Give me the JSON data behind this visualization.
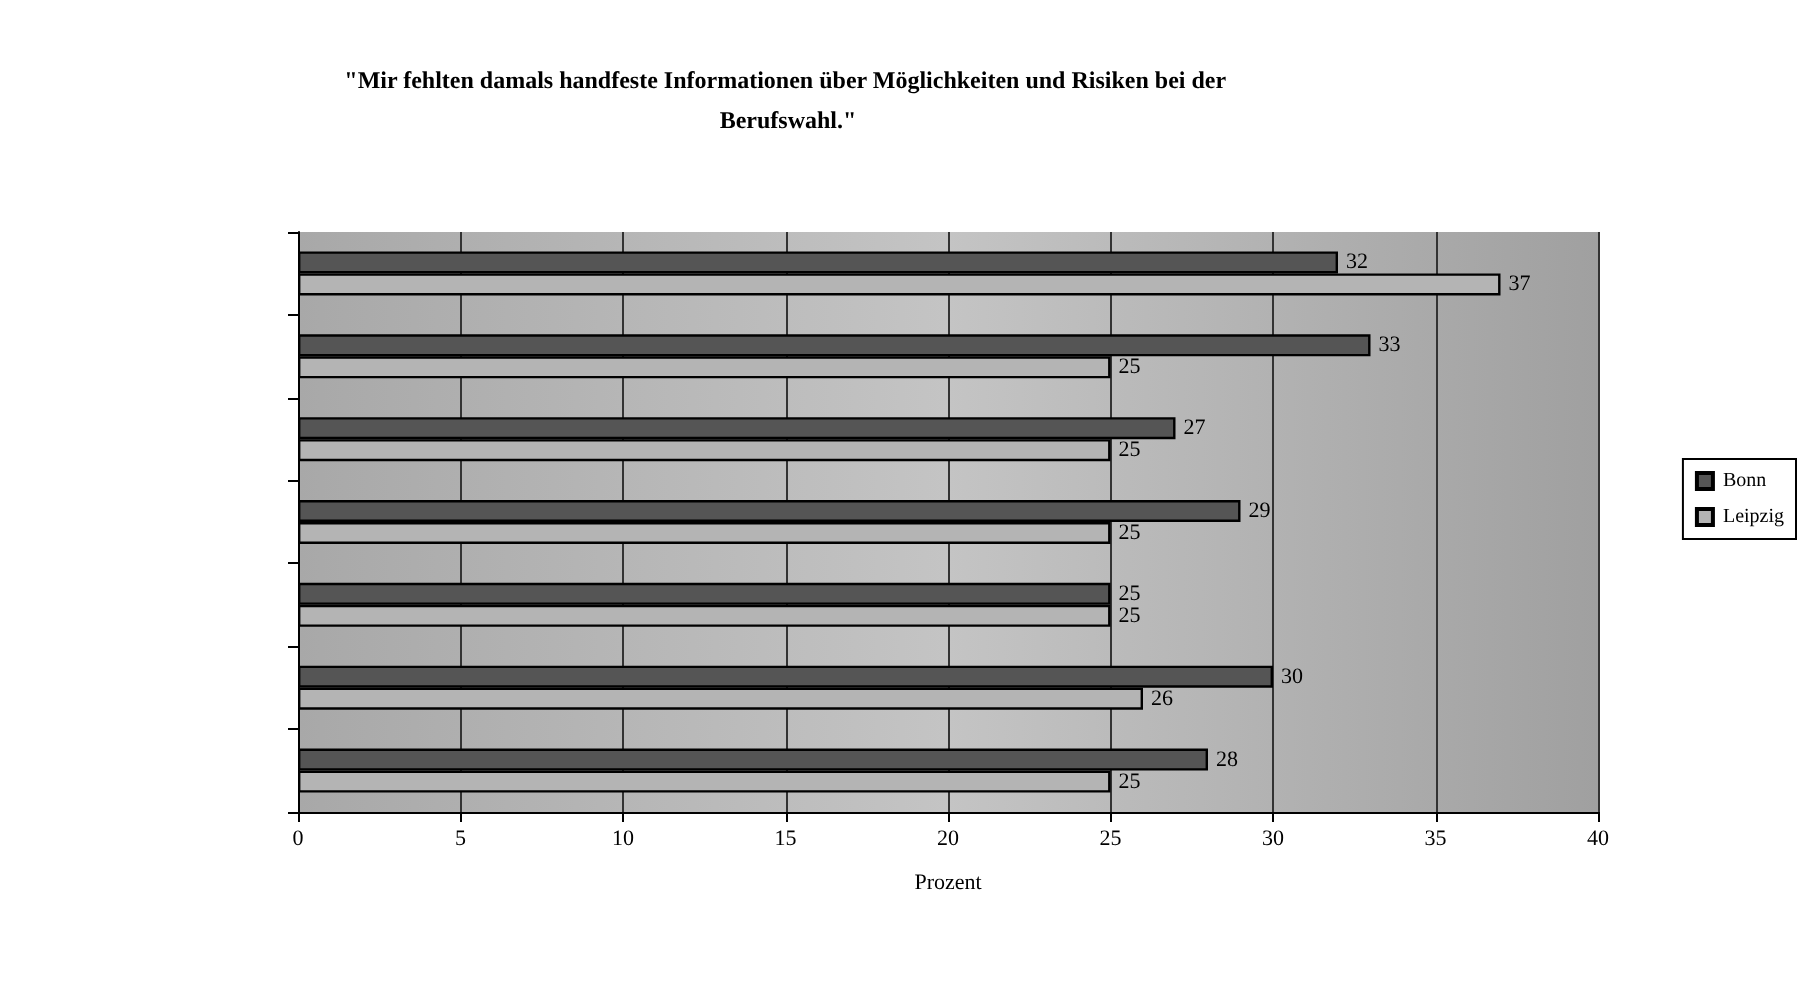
{
  "chart_data": {
    "type": "bar",
    "orientation": "horizontal",
    "title": "\"Mir fehlten damals handfeste Informationen über Möglichkeiten und Risiken bei der Berufswahl.\"",
    "xlabel": "Prozent",
    "categories": [
      null,
      null,
      null,
      null,
      null,
      null,
      null
    ],
    "series": [
      {
        "name": "Bonn",
        "color": "#555555",
        "values": [
          32,
          33,
          27,
          29,
          25,
          30,
          28
        ]
      },
      {
        "name": "Leipzig",
        "color": "#b4b4b4",
        "values": [
          37,
          25,
          25,
          25,
          25,
          26,
          25
        ]
      }
    ],
    "xlim": [
      0,
      40
    ],
    "xticks": [
      0,
      5,
      10,
      15,
      20,
      25,
      30,
      35,
      40
    ],
    "grid": "x",
    "legend": "right",
    "data_labels": true
  }
}
